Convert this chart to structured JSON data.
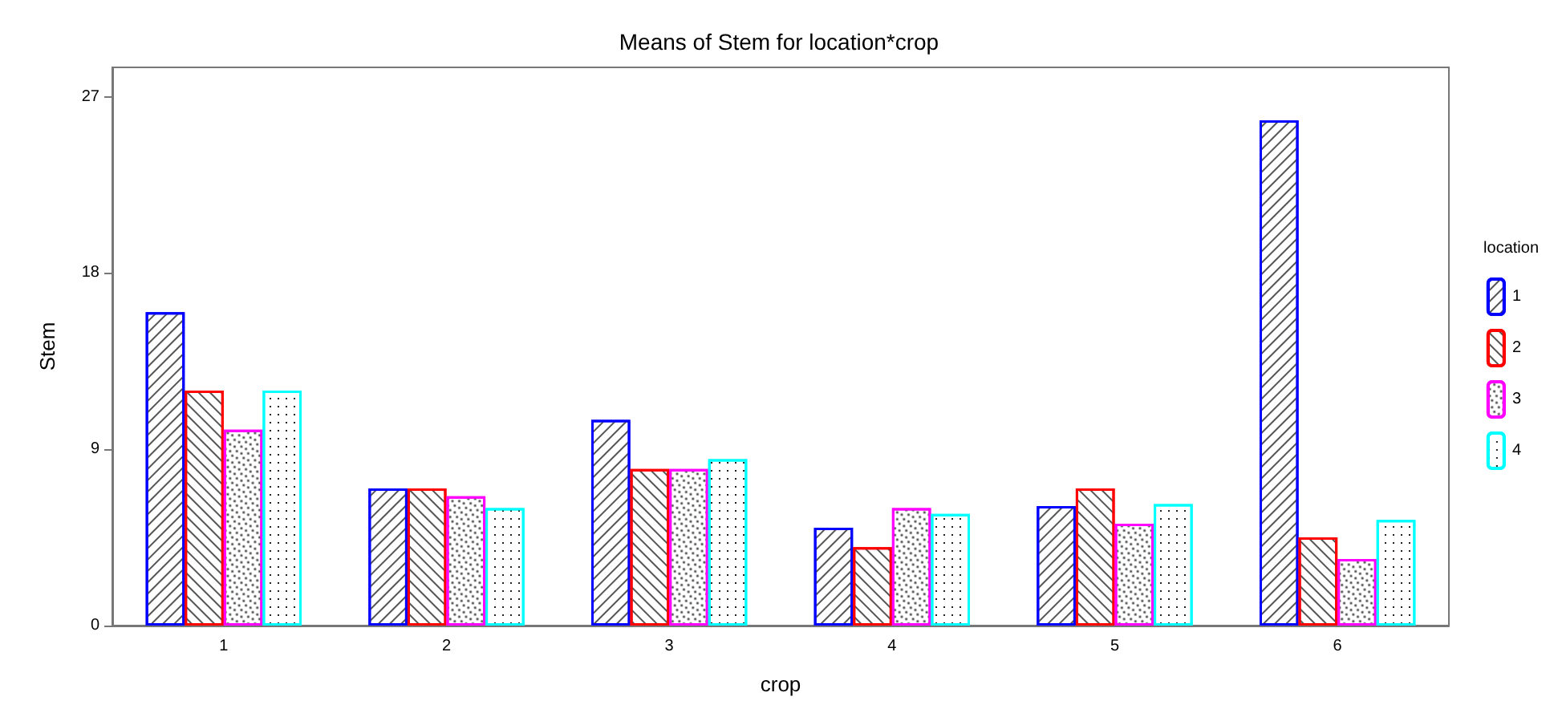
{
  "chart_data": {
    "type": "bar",
    "title": "Means of Stem for location*crop",
    "xlabel": "crop",
    "ylabel": "Stem",
    "legend_title": "location",
    "categories": [
      "1",
      "2",
      "3",
      "4",
      "5",
      "6"
    ],
    "series": [
      {
        "name": "1",
        "color": "#0000ff",
        "values": [
          16.0,
          7.0,
          10.5,
          5.0,
          6.1,
          25.8
        ]
      },
      {
        "name": "2",
        "color": "#ff0000",
        "values": [
          12.0,
          7.0,
          8.0,
          4.0,
          7.0,
          4.5
        ]
      },
      {
        "name": "3",
        "color": "#ff00ff",
        "values": [
          10.0,
          6.6,
          8.0,
          6.0,
          5.2,
          3.4
        ]
      },
      {
        "name": "4",
        "color": "#00ffff",
        "values": [
          12.0,
          6.0,
          8.5,
          5.7,
          6.2,
          5.4
        ]
      }
    ],
    "ylim": [
      0,
      28.5
    ],
    "yticks": [
      0,
      9,
      18,
      27
    ],
    "grid": false,
    "legend": "right"
  }
}
